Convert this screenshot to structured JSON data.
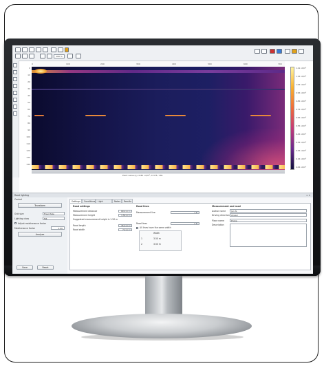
{
  "plot": {
    "x_ticks": [
      "0",
      "100",
      "200",
      "300",
      "400",
      "500",
      "600",
      "700"
    ],
    "y_ticks": [
      "0",
      "10",
      "20",
      "30",
      "40",
      "50",
      "60",
      "70",
      "80",
      "90",
      "100",
      "110",
      "120",
      "130",
      "140"
    ],
    "colorbar_labels": [
      "1.21 cd/m²",
      "1.15 cd/m²",
      "1.05 cd/m²",
      "0.95 cd/m²",
      "0.85 cd/m²",
      "0.75 cd/m²",
      "0.65 cd/m²",
      "0.55 cd/m²",
      "0.45 cd/m²",
      "0.35 cd/m²",
      "0.25 cd/m²",
      "0.15 cd/m²",
      "0.05 cd/m²"
    ],
    "caption": "Point value (L): 0.85 cd/m², X:375, Y:81",
    "zoom": "100 %"
  },
  "panel": {
    "title": "Road lighting",
    "subtitle": "Control",
    "close_glyphs": "▫ ✕",
    "left": {
      "transform_button": "Transform",
      "grid_size_label": "Grid size",
      "grid_size_value": "Fixed Size",
      "lighting_class_label": "Lighting class",
      "lighting_class_value": "M4",
      "checkbox_label": "Adjust maintenance factor",
      "maintenance_label": "Maintenance factor",
      "maintenance_value": "1.00",
      "analyze_button": "Analyze",
      "save_button": "Save",
      "reset_button": "Reset"
    },
    "tabs": [
      "Settings",
      "Conditions",
      "Light sources",
      "Notes",
      "Results"
    ],
    "settings": {
      "road_settings_title": "Road settings",
      "measurement_distance_label": "Measurement distance",
      "measurement_distance_value": "60.0 m",
      "measurement_height_label": "Measurement height",
      "measurement_height_value": "1.50 m",
      "suggested_label": "Suggested measurement height is 1.50 m",
      "road_length_label": "Road length",
      "road_length_value": "35.0 m",
      "road_width_label": "Road width",
      "road_width_value": "7.0 m",
      "road_lines_title": "Road lines",
      "measurement_line_label": "Measurement line",
      "measurement_line_value": "1",
      "road lines_label": "Road lines",
      "road_lines_value": "2",
      "checkbox_label": "All lines have the same width",
      "table_header": "Width",
      "table_rows": [
        "3.50 m",
        "3.50 m"
      ],
      "info_title": "Measurement and road",
      "author_label": "Author name",
      "author_value": "Jan N.",
      "driving_label": "Driving direction",
      "driving_value": "Ahead",
      "place_label": "Place name",
      "place_value": "Praha",
      "description_label": "Description"
    }
  },
  "colors": {
    "accent": "#3a7bd5",
    "heat_low": "#0f0f3b",
    "heat_high": "#fff3a0"
  }
}
